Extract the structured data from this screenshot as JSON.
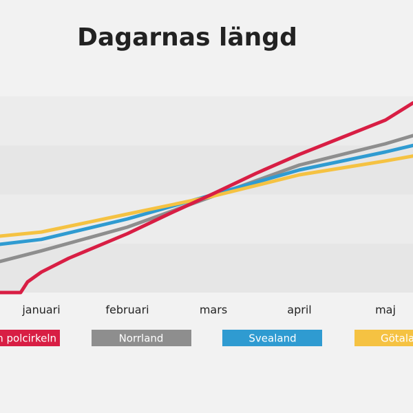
{
  "chart_data": {
    "type": "line",
    "title": "Dagarnas längd",
    "categories": [
      "januari",
      "februari",
      "mars",
      "april",
      "maj"
    ],
    "xlim": [
      -0.48,
      4.32
    ],
    "ylim": [
      0,
      24
    ],
    "yticks": [
      0,
      6,
      12,
      18,
      24
    ],
    "grid": true,
    "series": [
      {
        "name": "n polcirkeln",
        "color": "#d81e44",
        "x": [
          -0.48,
          -0.24,
          -0.16,
          0,
          0.32,
          1,
          1.5,
          2,
          2.5,
          3,
          3.5,
          4,
          4.32
        ],
        "values": [
          0,
          0,
          1.3,
          2.5,
          4.2,
          7.2,
          9.7,
          12.1,
          14.6,
          16.9,
          19,
          21.1,
          23.2
        ]
      },
      {
        "name": "Norrland",
        "color": "#8e8e8e",
        "x": [
          -0.48,
          0,
          1,
          2,
          3,
          4,
          4.32
        ],
        "values": [
          3.8,
          5.1,
          8.0,
          11.8,
          15.6,
          18.2,
          19.2
        ]
      },
      {
        "name": "Svealand",
        "color": "#2f9bd1",
        "x": [
          -0.48,
          0,
          1,
          2,
          3,
          4,
          4.32
        ],
        "values": [
          5.9,
          6.5,
          9.0,
          12.0,
          15.0,
          17.2,
          18.0
        ]
      },
      {
        "name": "Götala",
        "color": "#f5c242",
        "x": [
          -0.48,
          0,
          1,
          2,
          3,
          4,
          4.32
        ],
        "values": [
          6.9,
          7.4,
          9.6,
          11.8,
          14.4,
          16.1,
          16.7
        ]
      }
    ]
  }
}
